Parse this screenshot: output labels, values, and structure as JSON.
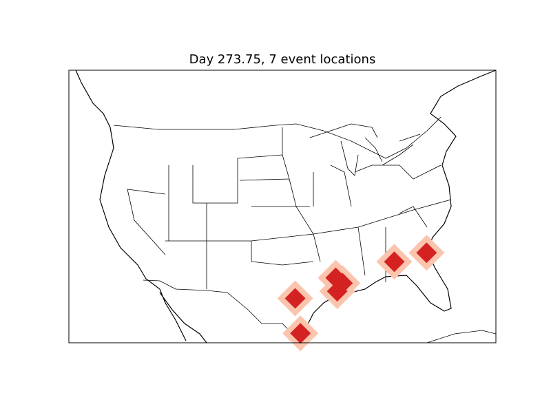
{
  "title": "Day 273.75, 7 event locations",
  "colors": {
    "event_core": "#d42222",
    "event_halo": "#fbc4ad",
    "coastline": "#000000",
    "borders": "#000000"
  },
  "map": {
    "type": "event map",
    "events": [
      {
        "lon": -99.2,
        "lat": 30.3
      },
      {
        "lon": -98.5,
        "lat": 26.4
      },
      {
        "lon": -93.8,
        "lat": 32.6
      },
      {
        "lon": -92.9,
        "lat": 32.0
      },
      {
        "lon": -93.6,
        "lat": 31.1
      },
      {
        "lon": -86.0,
        "lat": 34.4
      },
      {
        "lon": -81.7,
        "lat": 35.4
      }
    ]
  }
}
